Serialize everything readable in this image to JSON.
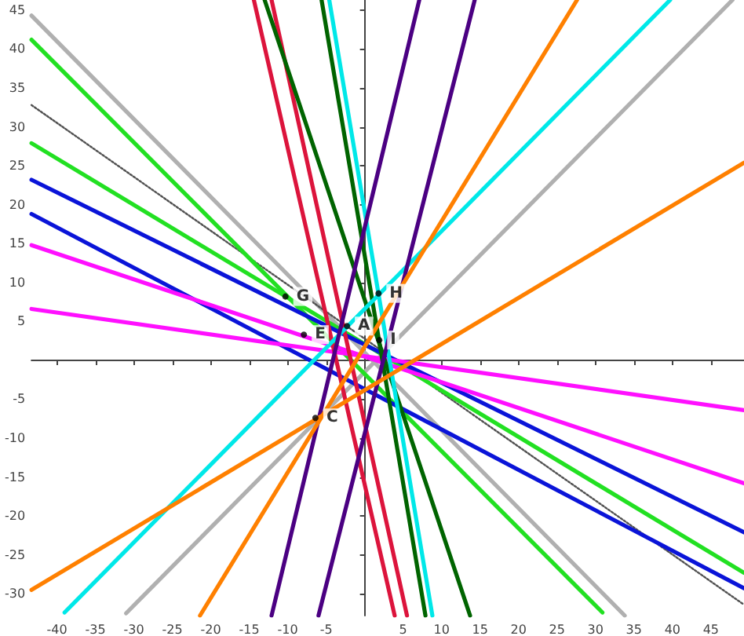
{
  "chart_data": {
    "type": "line",
    "marker": "none",
    "xlim": [
      -43.3,
      49.3
    ],
    "ylim": [
      -32.8,
      46.3
    ],
    "xticks": [
      -40,
      -35,
      -30,
      -25,
      -20,
      -15,
      -10,
      -5,
      5,
      10,
      15,
      20,
      25,
      30,
      35,
      40,
      45
    ],
    "yticks": [
      -30,
      -25,
      -20,
      -15,
      -10,
      -5,
      5,
      10,
      15,
      20,
      25,
      30,
      35,
      40,
      45
    ],
    "series": [
      {
        "color": "#b0b0b0",
        "line_style": "solid",
        "x": [
          -43.3,
          33.8
        ],
        "values": [
          44.3,
          -32.8
        ]
      },
      {
        "color": "#505050",
        "line_style": "dotted",
        "x": [
          -43.3,
          49.3
        ],
        "values": [
          32.8,
          -31.4
        ]
      },
      {
        "color": "#b0b0b0",
        "line_style": "solid",
        "x": [
          -31,
          47.8
        ],
        "values": [
          -32.5,
          46.3
        ]
      },
      {
        "color": "#22e022",
        "line_style": "solid",
        "x": [
          -43.3,
          30.9
        ],
        "values": [
          41.2,
          -32.4
        ]
      },
      {
        "color": "#22e022",
        "line_style": "solid",
        "x": [
          -43.3,
          49.3
        ],
        "values": [
          27.9,
          -27.3
        ]
      },
      {
        "color": "#0a14d8",
        "line_style": "solid",
        "x": [
          -43.3,
          49.3
        ],
        "values": [
          23.2,
          -22.1
        ]
      },
      {
        "color": "#0a14d8",
        "line_style": "solid",
        "x": [
          -43.3,
          49.3
        ],
        "values": [
          18.8,
          -29.3
        ]
      },
      {
        "color": "#ff10ff",
        "line_style": "solid",
        "x": [
          -43.3,
          49.3
        ],
        "values": [
          14.8,
          -15.8
        ]
      },
      {
        "color": "#ff10ff",
        "line_style": "solid",
        "x": [
          -43.3,
          49.3
        ],
        "values": [
          6.6,
          -6.4
        ]
      },
      {
        "color": "#dc143c",
        "line_style": "solid",
        "x": [
          -14.4,
          3.9
        ],
        "values": [
          46.3,
          -32.8
        ]
      },
      {
        "color": "#dc143c",
        "line_style": "solid",
        "x": [
          -12.1,
          5.5
        ],
        "values": [
          46.3,
          -32.8
        ]
      },
      {
        "color": "#006400",
        "line_style": "solid",
        "x": [
          -13.0,
          13.7
        ],
        "values": [
          46.3,
          -32.8
        ]
      },
      {
        "color": "#006400",
        "line_style": "solid",
        "x": [
          -5.6,
          7.9
        ],
        "values": [
          46.3,
          -32.8
        ]
      },
      {
        "color": "#00e8e8",
        "line_style": "solid",
        "x": [
          -4.6,
          8.8
        ],
        "values": [
          46.3,
          -32.8
        ]
      },
      {
        "color": "#00e8e8",
        "line_style": "solid",
        "x": [
          -39.0,
          39.7
        ],
        "values": [
          -32.4,
          46.3
        ]
      },
      {
        "color": "#4b0082",
        "line_style": "solid",
        "x": [
          -12.1,
          7.1
        ],
        "values": [
          -32.8,
          46.3
        ]
      },
      {
        "color": "#4b0082",
        "line_style": "solid",
        "x": [
          -6.0,
          14.3
        ],
        "values": [
          -32.8,
          46.3
        ]
      },
      {
        "color": "#ff8000",
        "line_style": "solid",
        "x": [
          -21.4,
          27.6
        ],
        "values": [
          -32.8,
          46.3
        ]
      },
      {
        "color": "#ff8000",
        "line_style": "solid",
        "x": [
          -43.3,
          49.3
        ],
        "values": [
          -29.5,
          25.4
        ]
      }
    ],
    "annotations": [
      {
        "text": "G",
        "x": -10.3,
        "y": 8.2
      },
      {
        "text": "E",
        "x": -7.9,
        "y": 3.3
      },
      {
        "text": "A",
        "x": -2.3,
        "y": 4.4
      },
      {
        "text": "H",
        "x": 1.8,
        "y": 8.6
      },
      {
        "text": "I",
        "x": 1.9,
        "y": 2.6
      },
      {
        "text": "C",
        "x": -6.4,
        "y": -7.4
      }
    ]
  }
}
